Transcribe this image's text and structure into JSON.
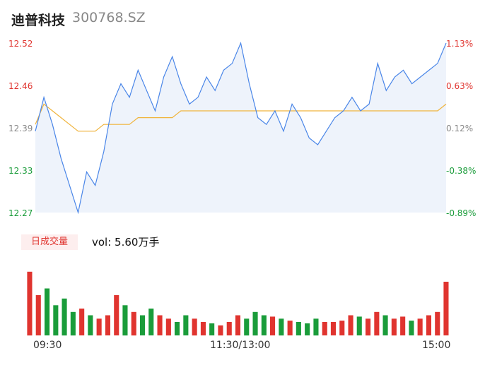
{
  "header": {
    "name": "迪普科技",
    "code": "300768.SZ"
  },
  "price_axis": {
    "left_labels": [
      "12.52",
      "12.46",
      "12.39",
      "12.33",
      "12.27"
    ],
    "right_labels": [
      "1.13%",
      "0.63%",
      "0.12%",
      "-0.38%",
      "-0.89%"
    ]
  },
  "volume_panel": {
    "tab_label": "日成交量",
    "vol_label": "vol: 5.60万手"
  },
  "time_axis": {
    "labels": [
      "09:30",
      "11:30/13:00",
      "15:00"
    ]
  },
  "colors": {
    "up": "#e0342f",
    "down": "#1a9c3a",
    "neutral": "#888888",
    "price_line": "#4a86e8",
    "avg_line": "#f0b43c",
    "fill": "#eef3fb"
  },
  "chart_data": [
    {
      "type": "line",
      "title": "",
      "x": [
        "09:30",
        "09:35",
        "09:40",
        "09:45",
        "09:50",
        "09:55",
        "10:00",
        "10:05",
        "10:10",
        "10:15",
        "10:20",
        "10:25",
        "10:30",
        "10:35",
        "10:40",
        "10:45",
        "10:50",
        "10:55",
        "11:00",
        "11:05",
        "11:10",
        "11:15",
        "11:20",
        "11:25",
        "11:30",
        "13:05",
        "13:10",
        "13:15",
        "13:20",
        "13:25",
        "13:30",
        "13:35",
        "13:40",
        "13:45",
        "13:50",
        "13:55",
        "14:00",
        "14:05",
        "14:10",
        "14:15",
        "14:20",
        "14:25",
        "14:30",
        "14:35",
        "14:40",
        "14:45",
        "14:50",
        "14:55",
        "15:00"
      ],
      "series": [
        {
          "values": [
            12.39,
            12.44,
            12.4,
            12.35,
            12.31,
            12.27,
            12.33,
            12.31,
            12.36,
            12.43,
            12.46,
            12.44,
            12.48,
            12.45,
            12.42,
            12.47,
            12.5,
            12.46,
            12.43,
            12.44,
            12.47,
            12.45,
            12.48,
            12.49,
            12.52,
            12.46,
            12.41,
            12.4,
            12.42,
            12.39,
            12.43,
            12.41,
            12.38,
            12.37,
            12.39,
            12.41,
            12.42,
            12.44,
            12.42,
            12.43,
            12.49,
            12.45,
            12.47,
            12.48,
            12.46,
            12.47,
            12.48,
            12.49,
            12.52
          ]
        },
        {
          "values": [
            12.4,
            12.43,
            12.42,
            12.41,
            12.4,
            12.39,
            12.39,
            12.39,
            12.4,
            12.4,
            12.4,
            12.4,
            12.41,
            12.41,
            12.41,
            12.41,
            12.41,
            12.42,
            12.42,
            12.42,
            12.42,
            12.42,
            12.42,
            12.42,
            12.42,
            12.42,
            12.42,
            12.42,
            12.42,
            12.42,
            12.42,
            12.42,
            12.42,
            12.42,
            12.42,
            12.42,
            12.42,
            12.42,
            12.42,
            12.42,
            12.42,
            12.42,
            12.42,
            12.42,
            12.42,
            12.42,
            12.42,
            12.42,
            12.43
          ]
        }
      ],
      "xlabel": "",
      "ylabel": "",
      "ylim": [
        12.27,
        12.52
      ],
      "grid": false
    },
    {
      "type": "bar",
      "title": "",
      "categories": [
        "09:30",
        "09:35",
        "09:40",
        "09:45",
        "09:50",
        "09:55",
        "10:00",
        "10:05",
        "10:10",
        "10:15",
        "10:20",
        "10:25",
        "10:30",
        "10:35",
        "10:40",
        "10:45",
        "10:50",
        "10:55",
        "11:00",
        "11:05",
        "11:10",
        "11:15",
        "11:20",
        "11:25",
        "11:30",
        "13:05",
        "13:10",
        "13:15",
        "13:20",
        "13:25",
        "13:30",
        "13:35",
        "13:40",
        "13:45",
        "13:50",
        "13:55",
        "14:00",
        "14:05",
        "14:10",
        "14:15",
        "14:20",
        "14:25",
        "14:30",
        "14:35",
        "14:40",
        "14:45",
        "14:50",
        "14:55",
        "15:00"
      ],
      "series": [
        {
          "values": [
            95,
            60,
            70,
            45,
            55,
            35,
            40,
            30,
            25,
            30,
            60,
            45,
            35,
            30,
            40,
            30,
            25,
            20,
            30,
            25,
            20,
            18,
            15,
            20,
            30,
            25,
            35,
            30,
            28,
            25,
            22,
            20,
            18,
            25,
            20,
            20,
            22,
            30,
            28,
            25,
            35,
            30,
            25,
            28,
            22,
            25,
            30,
            35,
            80
          ]
        }
      ],
      "xlabel": "",
      "ylabel": "",
      "ylim": [
        0,
        100
      ]
    }
  ]
}
